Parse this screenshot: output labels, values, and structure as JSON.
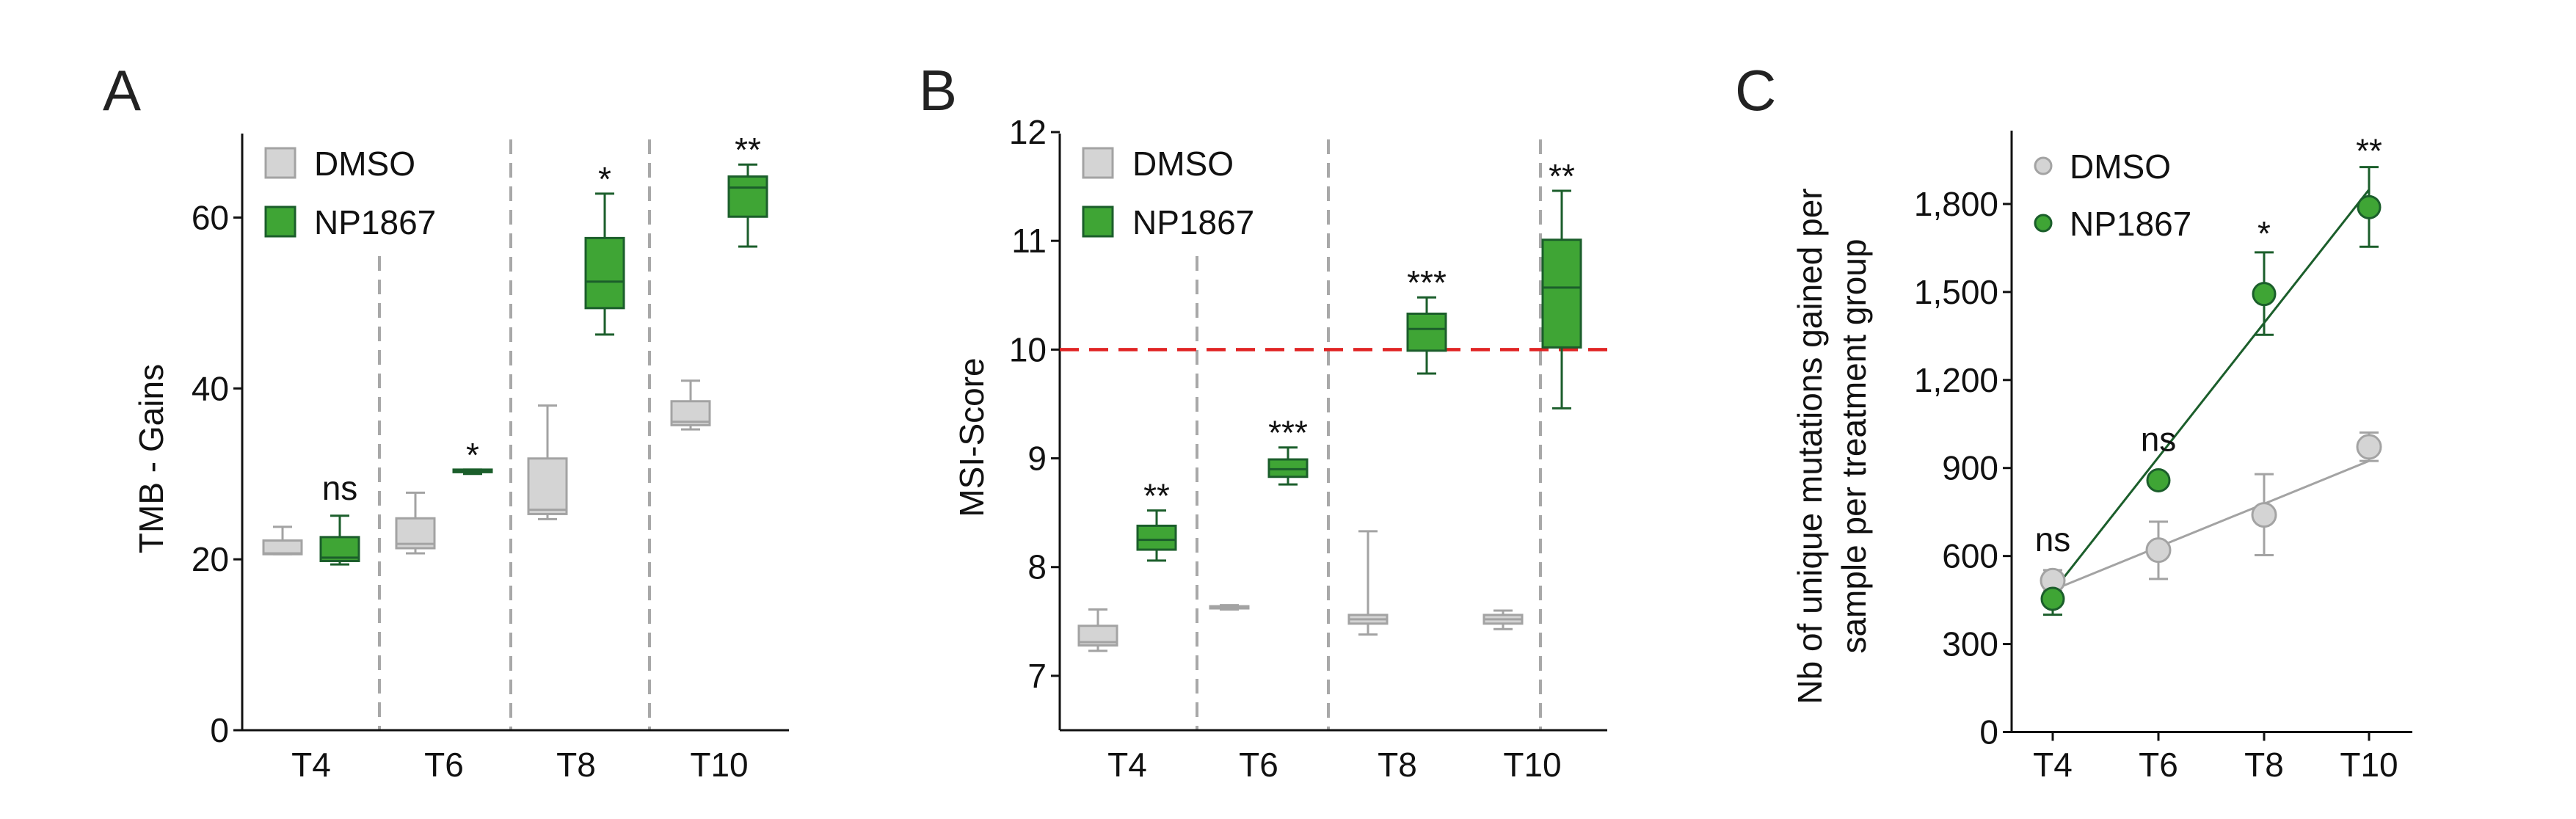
{
  "colors": {
    "dmso_fill": "#d4d4d4",
    "dmso_stroke": "#a3a3a3",
    "np_fill": "#3fa535",
    "np_stroke": "#1b5e2b",
    "threshold": "#e02424",
    "divider": "#a8a8a8",
    "axis": "#111111"
  },
  "chart_data": [
    {
      "panel": "A",
      "type": "box",
      "ylabel": "TMB - Gains",
      "xlabel": "",
      "categories": [
        "T4",
        "T6",
        "T8",
        "T10"
      ],
      "ylim": [
        0,
        70
      ],
      "yticks": [
        0,
        20,
        40,
        60
      ],
      "legend": [
        "DMSO",
        "NP1867"
      ],
      "legend_position": "top-left",
      "series": [
        {
          "name": "DMSO",
          "boxes": [
            {
              "min": 20.6,
              "q1": 20.6,
              "median": 20.7,
              "q3": 22.2,
              "max": 23.8
            },
            {
              "min": 20.7,
              "q1": 21.3,
              "median": 21.8,
              "q3": 24.8,
              "max": 27.8
            },
            {
              "min": 24.7,
              "q1": 25.3,
              "median": 25.8,
              "q3": 31.8,
              "max": 38.0
            },
            {
              "min": 35.2,
              "q1": 35.7,
              "median": 36.1,
              "q3": 38.5,
              "max": 40.9
            }
          ]
        },
        {
          "name": "NP1867",
          "boxes": [
            {
              "min": 19.4,
              "q1": 19.8,
              "median": 20.2,
              "q3": 22.6,
              "max": 25.1
            },
            {
              "min": 30.0,
              "q1": 30.2,
              "median": 30.3,
              "q3": 30.5,
              "max": 30.5
            },
            {
              "min": 46.3,
              "q1": 49.4,
              "median": 52.5,
              "q3": 57.6,
              "max": 62.8
            },
            {
              "min": 56.6,
              "q1": 60.1,
              "median": 63.5,
              "q3": 64.8,
              "max": 66.2
            }
          ]
        }
      ],
      "significance": [
        "ns",
        "*",
        "*",
        "**"
      ]
    },
    {
      "panel": "B",
      "type": "box",
      "ylabel": "MSI-Score",
      "xlabel": "",
      "categories": [
        "T4",
        "T6",
        "T8",
        "T10"
      ],
      "ylim": [
        6.5,
        12
      ],
      "yticks": [
        7,
        8,
        9,
        10,
        11,
        12
      ],
      "threshold": 10,
      "legend": [
        "DMSO",
        "NP1867"
      ],
      "legend_position": "top-left",
      "series": [
        {
          "name": "DMSO",
          "boxes": [
            {
              "min": 7.23,
              "q1": 7.28,
              "median": 7.31,
              "q3": 7.46,
              "max": 7.61
            },
            {
              "min": 7.61,
              "q1": 7.62,
              "median": 7.63,
              "q3": 7.64,
              "max": 7.65
            },
            {
              "min": 7.38,
              "q1": 7.48,
              "median": 7.52,
              "q3": 7.56,
              "max": 8.33
            },
            {
              "min": 7.43,
              "q1": 7.48,
              "median": 7.52,
              "q3": 7.56,
              "max": 7.6
            }
          ]
        },
        {
          "name": "NP1867",
          "boxes": [
            {
              "min": 8.06,
              "q1": 8.16,
              "median": 8.25,
              "q3": 8.38,
              "max": 8.52
            },
            {
              "min": 8.76,
              "q1": 8.83,
              "median": 8.9,
              "q3": 8.99,
              "max": 9.1
            },
            {
              "min": 9.78,
              "q1": 9.99,
              "median": 10.19,
              "q3": 10.33,
              "max": 10.48
            },
            {
              "min": 9.46,
              "q1": 10.02,
              "median": 10.57,
              "q3": 11.01,
              "max": 11.46
            }
          ]
        }
      ],
      "significance": [
        "**",
        "***",
        "***",
        "**"
      ]
    },
    {
      "panel": "C",
      "type": "scatter",
      "ylabel": [
        "Nb of unique mutations gained per",
        "sample per treatment group"
      ],
      "xlabel": "",
      "categories": [
        "T4",
        "T6",
        "T8",
        "T10"
      ],
      "ylim": [
        0,
        2050
      ],
      "yticks": [
        0,
        300,
        600,
        900,
        1200,
        1500,
        1800
      ],
      "ytick_labels": [
        "0",
        "300",
        "600",
        "900",
        "1,200",
        "1,500",
        "1,800"
      ],
      "legend": [
        "DMSO",
        "NP1867"
      ],
      "legend_position": "top-left",
      "series": [
        {
          "name": "DMSO",
          "values": [
            516,
            620,
            740,
            972
          ],
          "err_low": [
            481,
            522,
            603,
            924
          ],
          "err_high": [
            552,
            717,
            879,
            1021
          ],
          "fit": [
            484,
            924
          ]
        },
        {
          "name": "NP1867",
          "values": [
            454,
            858,
            1493,
            1789
          ],
          "err_low": [
            400,
            null,
            1354,
            1654
          ],
          "err_high": [
            454,
            null,
            1635,
            1926
          ],
          "fit": [
            479,
            1849
          ]
        }
      ],
      "significance": [
        "ns",
        "ns",
        "*",
        "**"
      ]
    }
  ],
  "panel_letters": [
    "A",
    "B",
    "C"
  ]
}
